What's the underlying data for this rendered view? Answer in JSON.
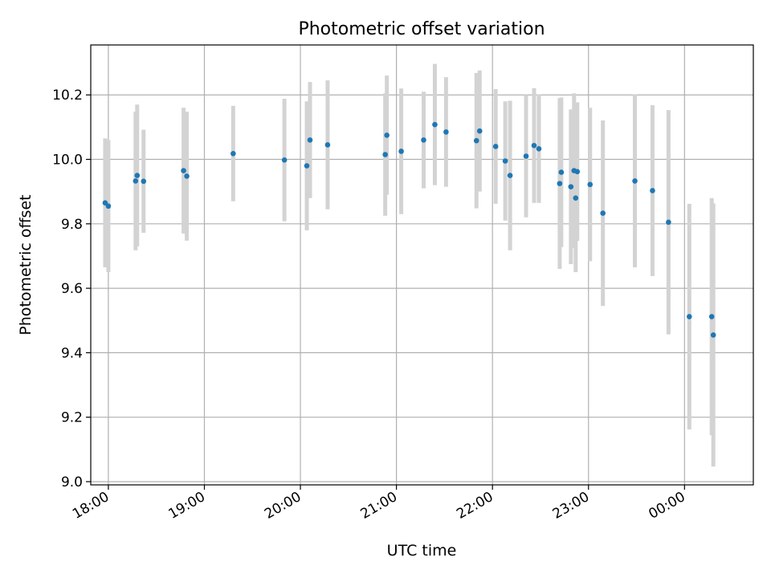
{
  "chart_data": {
    "type": "scatter",
    "title": "Photometric offset variation",
    "xlabel": "UTC time",
    "ylabel": "Photometric offset",
    "xlim": [
      "17:49",
      "00:43"
    ],
    "ylim": [
      8.99,
      10.355
    ],
    "x_ticks": [
      {
        "label": "18:00",
        "t": "18:00"
      },
      {
        "label": "19:00",
        "t": "19:00"
      },
      {
        "label": "20:00",
        "t": "20:00"
      },
      {
        "label": "21:00",
        "t": "21:00"
      },
      {
        "label": "22:00",
        "t": "22:00"
      },
      {
        "label": "23:00",
        "t": "23:00"
      },
      {
        "label": "00:00",
        "t": "00:00"
      }
    ],
    "y_ticks": [
      {
        "label": "9.0",
        "v": 9.0
      },
      {
        "label": "9.2",
        "v": 9.2
      },
      {
        "label": "9.4",
        "v": 9.4
      },
      {
        "label": "9.6",
        "v": 9.6
      },
      {
        "label": "9.8",
        "v": 9.8
      },
      {
        "label": "10.0",
        "v": 10.0
      },
      {
        "label": "10.2",
        "v": 10.2
      }
    ],
    "grid": true,
    "colors": {
      "marker": "#1f77b4",
      "errorbar": "#d3d3d3",
      "grid": "#b0b0b0",
      "axes": "#000000"
    },
    "points": [
      {
        "t": "17:58",
        "y": 9.865,
        "err": 0.2
      },
      {
        "t": "18:00",
        "y": 9.855,
        "err": 0.205
      },
      {
        "t": "18:17",
        "y": 9.933,
        "err": 0.215
      },
      {
        "t": "18:18",
        "y": 9.95,
        "err": 0.22
      },
      {
        "t": "18:22",
        "y": 9.932,
        "err": 0.16
      },
      {
        "t": "18:47",
        "y": 9.965,
        "err": 0.195
      },
      {
        "t": "18:49",
        "y": 9.948,
        "err": 0.2
      },
      {
        "t": "19:18",
        "y": 10.018,
        "err": 0.148
      },
      {
        "t": "19:50",
        "y": 9.998,
        "err": 0.19
      },
      {
        "t": "20:04",
        "y": 9.98,
        "err": 0.2
      },
      {
        "t": "20:06",
        "y": 10.06,
        "err": 0.18
      },
      {
        "t": "20:17",
        "y": 10.045,
        "err": 0.2
      },
      {
        "t": "20:53",
        "y": 10.015,
        "err": 0.19
      },
      {
        "t": "20:54",
        "y": 10.075,
        "err": 0.185
      },
      {
        "t": "21:03",
        "y": 10.025,
        "err": 0.195
      },
      {
        "t": "21:17",
        "y": 10.06,
        "err": 0.15
      },
      {
        "t": "21:24",
        "y": 10.108,
        "err": 0.188
      },
      {
        "t": "21:31",
        "y": 10.085,
        "err": 0.17
      },
      {
        "t": "21:50",
        "y": 10.058,
        "err": 0.21
      },
      {
        "t": "21:52",
        "y": 10.088,
        "err": 0.188
      },
      {
        "t": "22:02",
        "y": 10.04,
        "err": 0.178
      },
      {
        "t": "22:08",
        "y": 9.995,
        "err": 0.185
      },
      {
        "t": "22:11",
        "y": 9.95,
        "err": 0.232
      },
      {
        "t": "22:21",
        "y": 10.01,
        "err": 0.19
      },
      {
        "t": "22:26",
        "y": 10.043,
        "err": 0.178
      },
      {
        "t": "22:29",
        "y": 10.033,
        "err": 0.168
      },
      {
        "t": "22:42",
        "y": 9.925,
        "err": 0.265
      },
      {
        "t": "22:43",
        "y": 9.96,
        "err": 0.232
      },
      {
        "t": "22:49",
        "y": 9.915,
        "err": 0.24
      },
      {
        "t": "22:51",
        "y": 9.965,
        "err": 0.24
      },
      {
        "t": "22:52",
        "y": 9.88,
        "err": 0.23
      },
      {
        "t": "22:53",
        "y": 9.962,
        "err": 0.215
      },
      {
        "t": "23:01",
        "y": 9.922,
        "err": 0.238
      },
      {
        "t": "23:09",
        "y": 9.833,
        "err": 0.288
      },
      {
        "t": "23:29",
        "y": 9.933,
        "err": 0.268
      },
      {
        "t": "23:40",
        "y": 9.903,
        "err": 0.265
      },
      {
        "t": "23:50",
        "y": 9.805,
        "err": 0.348
      },
      {
        "t": "00:03",
        "y": 9.512,
        "err": 0.35
      },
      {
        "t": "00:17",
        "y": 9.512,
        "err": 0.368
      },
      {
        "t": "00:18",
        "y": 9.455,
        "err": 0.408
      }
    ]
  }
}
